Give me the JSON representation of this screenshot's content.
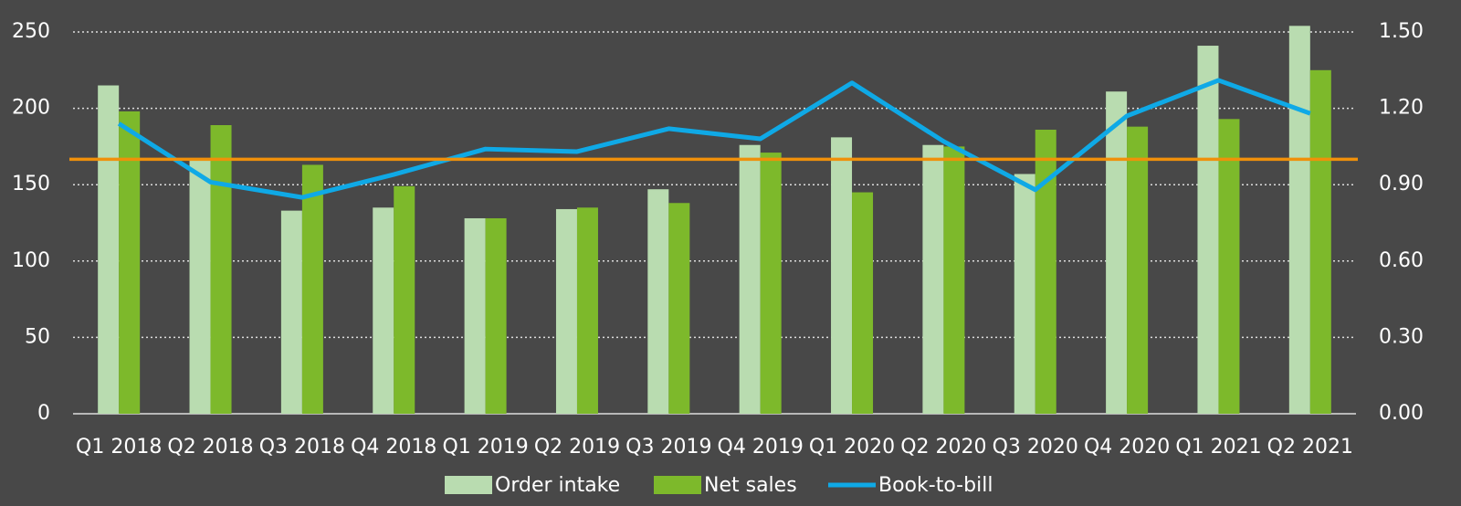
{
  "chart_data": {
    "type": "bar",
    "categories": [
      "Q1 2018",
      "Q2 2018",
      "Q3 2018",
      "Q4 2018",
      "Q1 2019",
      "Q2 2019",
      "Q3 2019",
      "Q4 2019",
      "Q1 2020",
      "Q2 2020",
      "Q3 2020",
      "Q4 2020",
      "Q1 2021",
      "Q2 2021"
    ],
    "series": [
      {
        "name": "Order intake",
        "color": "#b9dcb0",
        "values": [
          215,
          166,
          133,
          135,
          128,
          134,
          147,
          176,
          181,
          176,
          157,
          211,
          241,
          254
        ]
      },
      {
        "name": "Net sales",
        "color": "#7db92b",
        "values": [
          198,
          189,
          163,
          149,
          128,
          135,
          138,
          171,
          145,
          175,
          186,
          188,
          193,
          225
        ]
      },
      {
        "name": "Book-to-bill",
        "type": "line",
        "axis": "y2",
        "color": "#0fa9e6",
        "values": [
          1.14,
          0.91,
          0.85,
          0.94,
          1.04,
          1.03,
          1.12,
          1.08,
          1.3,
          1.07,
          0.88,
          1.17,
          1.31,
          1.18
        ]
      }
    ],
    "reference_line": {
      "value": 1,
      "axis": "y2",
      "color": "#f0900a"
    },
    "ylim": [
      0,
      250
    ],
    "yticks": [
      0,
      50,
      100,
      150,
      200,
      250
    ],
    "y2lim": [
      0,
      1.5
    ],
    "y2ticks": [
      {
        "value": 0,
        "label": "0.00"
      },
      {
        "value": 0.3,
        "label": "0.30"
      },
      {
        "value": 0.6,
        "label": "0.60"
      },
      {
        "value": 0.9,
        "label": "0.90"
      },
      {
        "value": 1.2,
        "label": "1.20"
      },
      {
        "value": 1.5,
        "label": "1.50"
      }
    ],
    "grid": true,
    "legend": "bottom"
  }
}
